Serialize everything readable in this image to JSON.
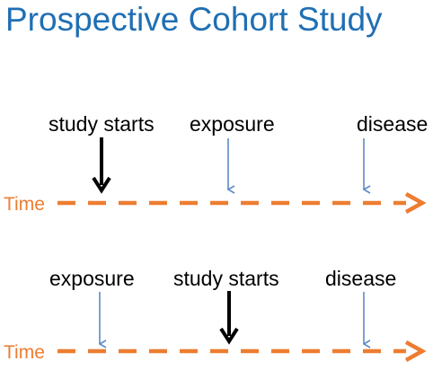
{
  "title": "Prospective Cohort Study",
  "colors": {
    "title": "#1f6fb4",
    "timeline": "#ed7d31",
    "thin_arrow": "#5b8ac6",
    "thick_arrow": "#000000"
  },
  "timelines": [
    {
      "time_label": "Time",
      "events": [
        {
          "label": "study starts",
          "arrow": "thick"
        },
        {
          "label": "exposure",
          "arrow": "thin"
        },
        {
          "label": "disease",
          "arrow": "thin"
        }
      ]
    },
    {
      "time_label": "Time",
      "events": [
        {
          "label": "exposure",
          "arrow": "thin"
        },
        {
          "label": "study starts",
          "arrow": "thick"
        },
        {
          "label": "disease",
          "arrow": "thin"
        }
      ]
    }
  ]
}
